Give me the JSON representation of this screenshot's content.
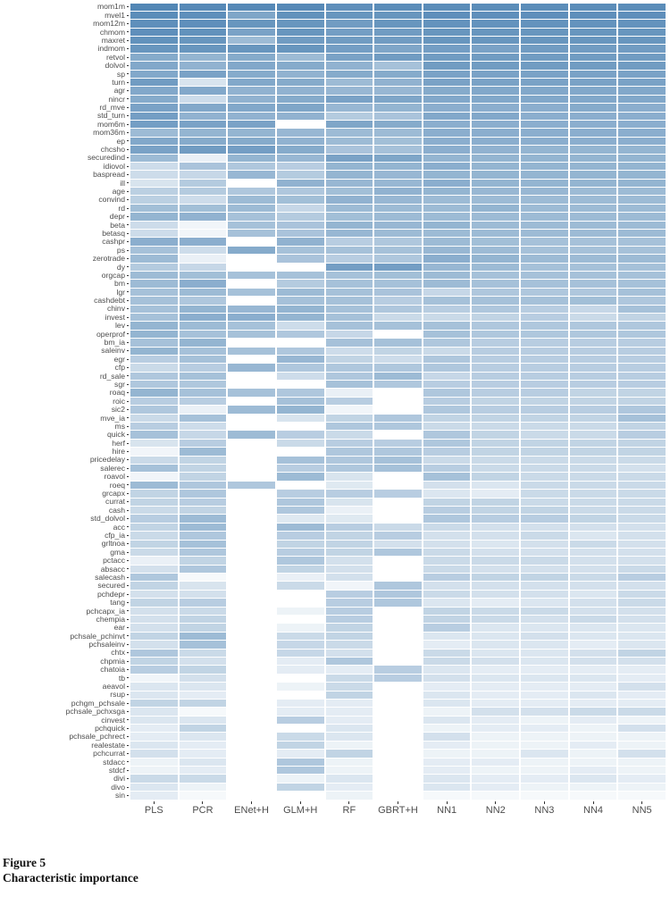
{
  "figure": {
    "number": "Figure 5",
    "title": "Characteristic importance"
  },
  "chart_data": {
    "type": "heatmap",
    "title": "",
    "xlabel": "",
    "ylabel": "",
    "legend": "none",
    "value_range": [
      0,
      1
    ],
    "color_low": "#ffffff",
    "color_high": "#4d83b3",
    "color_high_rgb": [
      77,
      131,
      179
    ],
    "columns": [
      "PLS",
      "PCR",
      "ENet+H",
      "GLM+H",
      "RF",
      "GBRT+H",
      "NN1",
      "NN2",
      "NN3",
      "NN4",
      "NN5"
    ],
    "rows": [
      "mom1m",
      "mvel1",
      "mom12m",
      "chmom",
      "maxret",
      "indmom",
      "retvol",
      "dolvol",
      "sp",
      "turn",
      "agr",
      "nincr",
      "rd_mve",
      "std_turn",
      "mom6m",
      "mom36m",
      "ep",
      "chcsho",
      "securedind",
      "idiovol",
      "baspread",
      "ill",
      "age",
      "convind",
      "rd",
      "depr",
      "beta",
      "betasq",
      "cashpr",
      "ps",
      "zerotrade",
      "dy",
      "orgcap",
      "bm",
      "lgr",
      "cashdebt",
      "chinv",
      "invest",
      "lev",
      "operprof",
      "bm_ia",
      "saleinv",
      "egr",
      "cfp",
      "rd_sale",
      "sgr",
      "roaq",
      "roic",
      "sic2",
      "mve_ia",
      "ms",
      "quick",
      "herf",
      "hire",
      "pricedelay",
      "salerec",
      "roavol",
      "roeq",
      "grcapx",
      "currat",
      "cash",
      "std_dolvol",
      "acc",
      "cfp_ia",
      "grltnoa",
      "gma",
      "pctacc",
      "absacc",
      "salecash",
      "secured",
      "pchdepr",
      "tang",
      "pchcapx_ia",
      "chempia",
      "ear",
      "pchsale_pchinvt",
      "pchsaleinv",
      "chtx",
      "chpmia",
      "chatoia",
      "tb",
      "aeavol",
      "rsup",
      "pchgm_pchsale",
      "pchsale_pchxsga",
      "cinvest",
      "pchquick",
      "pchsale_pchrect",
      "realestate",
      "pchcurrat",
      "stdacc",
      "stdcf",
      "divi",
      "divo",
      "sin"
    ],
    "values": [
      [
        0.97,
        0.95,
        0.95,
        0.95,
        0.9,
        0.92,
        0.92,
        0.92,
        0.92,
        0.92,
        0.92
      ],
      [
        0.92,
        0.9,
        0.72,
        0.88,
        0.85,
        0.85,
        0.9,
        0.9,
        0.9,
        0.9,
        0.9
      ],
      [
        0.9,
        0.9,
        0.85,
        0.85,
        0.8,
        0.85,
        0.87,
        0.87,
        0.87,
        0.87,
        0.87
      ],
      [
        0.9,
        0.88,
        0.75,
        0.85,
        0.78,
        0.8,
        0.85,
        0.85,
        0.85,
        0.85,
        0.85
      ],
      [
        0.88,
        0.85,
        0.55,
        0.8,
        0.8,
        0.8,
        0.85,
        0.85,
        0.85,
        0.85,
        0.85
      ],
      [
        0.85,
        0.85,
        0.85,
        0.85,
        0.78,
        0.72,
        0.78,
        0.75,
        0.8,
        0.8,
        0.8
      ],
      [
        0.68,
        0.6,
        0.68,
        0.55,
        0.75,
        0.8,
        0.8,
        0.8,
        0.8,
        0.8,
        0.8
      ],
      [
        0.7,
        0.62,
        0.7,
        0.68,
        0.62,
        0.5,
        0.8,
        0.8,
        0.8,
        0.8,
        0.8
      ],
      [
        0.7,
        0.75,
        0.68,
        0.62,
        0.68,
        0.68,
        0.75,
        0.75,
        0.75,
        0.75,
        0.75
      ],
      [
        0.8,
        0.22,
        0.7,
        0.68,
        0.55,
        0.62,
        0.75,
        0.75,
        0.75,
        0.75,
        0.75
      ],
      [
        0.7,
        0.7,
        0.62,
        0.62,
        0.58,
        0.58,
        0.68,
        0.7,
        0.7,
        0.7,
        0.7
      ],
      [
        0.68,
        0.28,
        0.62,
        0.68,
        0.75,
        0.72,
        0.7,
        0.7,
        0.7,
        0.7,
        0.7
      ],
      [
        0.75,
        0.7,
        0.7,
        0.72,
        0.58,
        0.6,
        0.65,
        0.65,
        0.65,
        0.68,
        0.65
      ],
      [
        0.78,
        0.62,
        0.62,
        0.62,
        0.42,
        0.48,
        0.7,
        0.7,
        0.65,
        0.65,
        0.65
      ],
      [
        0.78,
        0.75,
        0.75,
        0.0,
        0.72,
        0.68,
        0.65,
        0.65,
        0.65,
        0.65,
        0.65
      ],
      [
        0.55,
        0.6,
        0.6,
        0.58,
        0.55,
        0.55,
        0.65,
        0.65,
        0.65,
        0.65,
        0.65
      ],
      [
        0.7,
        0.68,
        0.68,
        0.62,
        0.55,
        0.52,
        0.65,
        0.65,
        0.65,
        0.65,
        0.65
      ],
      [
        0.75,
        0.8,
        0.78,
        0.68,
        0.48,
        0.5,
        0.65,
        0.62,
        0.6,
        0.6,
        0.6
      ],
      [
        0.55,
        0.12,
        0.6,
        0.58,
        0.75,
        0.72,
        0.6,
        0.6,
        0.6,
        0.6,
        0.6
      ],
      [
        0.28,
        0.48,
        0.45,
        0.4,
        0.6,
        0.6,
        0.65,
        0.6,
        0.6,
        0.6,
        0.6
      ],
      [
        0.28,
        0.32,
        0.58,
        0.42,
        0.6,
        0.58,
        0.6,
        0.6,
        0.6,
        0.6,
        0.6
      ],
      [
        0.22,
        0.42,
        0.0,
        0.62,
        0.58,
        0.58,
        0.65,
        0.6,
        0.6,
        0.6,
        0.6
      ],
      [
        0.38,
        0.42,
        0.45,
        0.45,
        0.52,
        0.62,
        0.6,
        0.58,
        0.58,
        0.55,
        0.55
      ],
      [
        0.38,
        0.28,
        0.55,
        0.52,
        0.62,
        0.58,
        0.55,
        0.55,
        0.55,
        0.55,
        0.55
      ],
      [
        0.52,
        0.52,
        0.55,
        0.32,
        0.55,
        0.55,
        0.55,
        0.6,
        0.55,
        0.55,
        0.55
      ],
      [
        0.6,
        0.62,
        0.5,
        0.42,
        0.52,
        0.55,
        0.55,
        0.55,
        0.55,
        0.55,
        0.55
      ],
      [
        0.28,
        0.08,
        0.5,
        0.48,
        0.6,
        0.58,
        0.6,
        0.55,
        0.55,
        0.55,
        0.55
      ],
      [
        0.28,
        0.08,
        0.5,
        0.48,
        0.58,
        0.55,
        0.55,
        0.55,
        0.55,
        0.55,
        0.55
      ],
      [
        0.65,
        0.65,
        0.0,
        0.62,
        0.4,
        0.45,
        0.55,
        0.52,
        0.5,
        0.5,
        0.5
      ],
      [
        0.5,
        0.28,
        0.68,
        0.5,
        0.5,
        0.5,
        0.58,
        0.55,
        0.5,
        0.5,
        0.5
      ],
      [
        0.55,
        0.12,
        0.0,
        0.48,
        0.4,
        0.45,
        0.65,
        0.6,
        0.55,
        0.55,
        0.55
      ],
      [
        0.42,
        0.32,
        0.0,
        0.0,
        0.78,
        0.78,
        0.58,
        0.55,
        0.5,
        0.5,
        0.5
      ],
      [
        0.55,
        0.52,
        0.5,
        0.5,
        0.5,
        0.52,
        0.55,
        0.5,
        0.5,
        0.5,
        0.5
      ],
      [
        0.55,
        0.65,
        0.0,
        0.42,
        0.5,
        0.5,
        0.55,
        0.5,
        0.5,
        0.5,
        0.5
      ],
      [
        0.5,
        0.55,
        0.5,
        0.55,
        0.5,
        0.48,
        0.32,
        0.45,
        0.45,
        0.45,
        0.5
      ],
      [
        0.5,
        0.45,
        0.0,
        0.5,
        0.5,
        0.4,
        0.5,
        0.5,
        0.5,
        0.52,
        0.45
      ],
      [
        0.5,
        0.6,
        0.58,
        0.6,
        0.5,
        0.45,
        0.4,
        0.45,
        0.4,
        0.32,
        0.5
      ],
      [
        0.5,
        0.65,
        0.65,
        0.6,
        0.5,
        0.3,
        0.3,
        0.35,
        0.4,
        0.3,
        0.35
      ],
      [
        0.6,
        0.55,
        0.5,
        0.28,
        0.5,
        0.5,
        0.5,
        0.45,
        0.45,
        0.45,
        0.45
      ],
      [
        0.6,
        0.5,
        0.5,
        0.45,
        0.32,
        0.0,
        0.5,
        0.45,
        0.45,
        0.45,
        0.45
      ],
      [
        0.5,
        0.6,
        0.0,
        0.0,
        0.5,
        0.5,
        0.45,
        0.4,
        0.4,
        0.4,
        0.4
      ],
      [
        0.6,
        0.5,
        0.5,
        0.45,
        0.28,
        0.35,
        0.3,
        0.4,
        0.4,
        0.4,
        0.4
      ],
      [
        0.4,
        0.5,
        0.0,
        0.58,
        0.35,
        0.28,
        0.45,
        0.4,
        0.4,
        0.4,
        0.4
      ],
      [
        0.3,
        0.4,
        0.58,
        0.45,
        0.45,
        0.45,
        0.45,
        0.4,
        0.4,
        0.4,
        0.4
      ],
      [
        0.45,
        0.5,
        0.0,
        0.28,
        0.45,
        0.55,
        0.32,
        0.4,
        0.4,
        0.4,
        0.4
      ],
      [
        0.45,
        0.45,
        0.0,
        0.0,
        0.5,
        0.45,
        0.4,
        0.4,
        0.4,
        0.4,
        0.4
      ],
      [
        0.6,
        0.5,
        0.5,
        0.45,
        0.12,
        0.0,
        0.45,
        0.4,
        0.4,
        0.35,
        0.35
      ],
      [
        0.4,
        0.4,
        0.0,
        0.5,
        0.4,
        0.0,
        0.4,
        0.35,
        0.35,
        0.35,
        0.35
      ],
      [
        0.45,
        0.12,
        0.55,
        0.6,
        0.08,
        0.0,
        0.45,
        0.4,
        0.4,
        0.4,
        0.45
      ],
      [
        0.3,
        0.5,
        0.0,
        0.22,
        0.35,
        0.45,
        0.35,
        0.35,
        0.35,
        0.35,
        0.5
      ],
      [
        0.4,
        0.28,
        0.0,
        0.0,
        0.45,
        0.45,
        0.3,
        0.3,
        0.3,
        0.3,
        0.35
      ],
      [
        0.5,
        0.32,
        0.55,
        0.4,
        0.3,
        0.0,
        0.45,
        0.35,
        0.3,
        0.3,
        0.4
      ],
      [
        0.22,
        0.4,
        0.0,
        0.3,
        0.4,
        0.4,
        0.45,
        0.35,
        0.35,
        0.35,
        0.35
      ],
      [
        0.08,
        0.55,
        0.0,
        0.0,
        0.45,
        0.45,
        0.4,
        0.35,
        0.35,
        0.35,
        0.35
      ],
      [
        0.3,
        0.35,
        0.0,
        0.5,
        0.45,
        0.5,
        0.3,
        0.3,
        0.3,
        0.3,
        0.3
      ],
      [
        0.5,
        0.35,
        0.0,
        0.4,
        0.45,
        0.5,
        0.4,
        0.3,
        0.3,
        0.3,
        0.25
      ],
      [
        0.08,
        0.35,
        0.0,
        0.55,
        0.22,
        0.0,
        0.5,
        0.35,
        0.3,
        0.3,
        0.3
      ],
      [
        0.55,
        0.45,
        0.45,
        0.0,
        0.18,
        0.0,
        0.25,
        0.2,
        0.3,
        0.3,
        0.3
      ],
      [
        0.35,
        0.45,
        0.0,
        0.4,
        0.4,
        0.4,
        0.2,
        0.15,
        0.3,
        0.3,
        0.3
      ],
      [
        0.35,
        0.4,
        0.0,
        0.45,
        0.22,
        0.0,
        0.35,
        0.35,
        0.3,
        0.3,
        0.3
      ],
      [
        0.3,
        0.35,
        0.0,
        0.45,
        0.12,
        0.0,
        0.4,
        0.35,
        0.35,
        0.3,
        0.3
      ],
      [
        0.4,
        0.55,
        0.0,
        0.18,
        0.18,
        0.0,
        0.45,
        0.4,
        0.4,
        0.35,
        0.3
      ],
      [
        0.35,
        0.55,
        0.0,
        0.55,
        0.4,
        0.3,
        0.3,
        0.25,
        0.25,
        0.25,
        0.25
      ],
      [
        0.3,
        0.45,
        0.0,
        0.4,
        0.35,
        0.4,
        0.25,
        0.25,
        0.3,
        0.2,
        0.25
      ],
      [
        0.35,
        0.5,
        0.0,
        0.35,
        0.35,
        0.25,
        0.25,
        0.2,
        0.25,
        0.3,
        0.25
      ],
      [
        0.3,
        0.45,
        0.0,
        0.4,
        0.35,
        0.45,
        0.3,
        0.25,
        0.25,
        0.25,
        0.25
      ],
      [
        0.12,
        0.35,
        0.0,
        0.45,
        0.25,
        0.0,
        0.3,
        0.3,
        0.3,
        0.25,
        0.25
      ],
      [
        0.25,
        0.45,
        0.0,
        0.35,
        0.25,
        0.0,
        0.3,
        0.25,
        0.25,
        0.25,
        0.3
      ],
      [
        0.45,
        0.05,
        0.0,
        0.12,
        0.25,
        0.0,
        0.4,
        0.35,
        0.35,
        0.3,
        0.4
      ],
      [
        0.35,
        0.22,
        0.0,
        0.3,
        0.08,
        0.45,
        0.25,
        0.25,
        0.25,
        0.25,
        0.25
      ],
      [
        0.25,
        0.25,
        0.0,
        0.0,
        0.4,
        0.45,
        0.3,
        0.25,
        0.25,
        0.2,
        0.3
      ],
      [
        0.35,
        0.4,
        0.0,
        0.0,
        0.4,
        0.45,
        0.2,
        0.15,
        0.2,
        0.25,
        0.3
      ],
      [
        0.25,
        0.3,
        0.0,
        0.1,
        0.4,
        0.0,
        0.35,
        0.3,
        0.3,
        0.25,
        0.25
      ],
      [
        0.25,
        0.35,
        0.0,
        0.0,
        0.4,
        0.0,
        0.35,
        0.3,
        0.25,
        0.3,
        0.25
      ],
      [
        0.25,
        0.35,
        0.0,
        0.1,
        0.35,
        0.0,
        0.4,
        0.2,
        0.2,
        0.2,
        0.2
      ],
      [
        0.35,
        0.55,
        0.0,
        0.3,
        0.35,
        0.0,
        0.2,
        0.2,
        0.25,
        0.2,
        0.2
      ],
      [
        0.25,
        0.5,
        0.0,
        0.32,
        0.3,
        0.0,
        0.15,
        0.2,
        0.2,
        0.15,
        0.2
      ],
      [
        0.45,
        0.3,
        0.0,
        0.32,
        0.25,
        0.0,
        0.3,
        0.2,
        0.2,
        0.25,
        0.35
      ],
      [
        0.35,
        0.25,
        0.0,
        0.15,
        0.45,
        0.0,
        0.3,
        0.25,
        0.2,
        0.25,
        0.25
      ],
      [
        0.4,
        0.35,
        0.0,
        0.15,
        0.15,
        0.4,
        0.2,
        0.15,
        0.15,
        0.15,
        0.15
      ],
      [
        0.08,
        0.25,
        0.0,
        0.0,
        0.3,
        0.4,
        0.25,
        0.2,
        0.2,
        0.2,
        0.15
      ],
      [
        0.2,
        0.2,
        0.0,
        0.1,
        0.3,
        0.0,
        0.15,
        0.15,
        0.15,
        0.15,
        0.25
      ],
      [
        0.2,
        0.15,
        0.0,
        0.0,
        0.35,
        0.0,
        0.2,
        0.15,
        0.15,
        0.2,
        0.15
      ],
      [
        0.35,
        0.35,
        0.0,
        0.15,
        0.15,
        0.0,
        0.2,
        0.15,
        0.15,
        0.15,
        0.15
      ],
      [
        0.2,
        0.05,
        0.0,
        0.15,
        0.15,
        0.0,
        0.1,
        0.25,
        0.25,
        0.3,
        0.3
      ],
      [
        0.2,
        0.2,
        0.0,
        0.4,
        0.15,
        0.0,
        0.2,
        0.15,
        0.1,
        0.15,
        0.1
      ],
      [
        0.15,
        0.35,
        0.0,
        0.0,
        0.2,
        0.0,
        0.1,
        0.15,
        0.15,
        0.1,
        0.25
      ],
      [
        0.15,
        0.2,
        0.0,
        0.3,
        0.2,
        0.0,
        0.25,
        0.1,
        0.1,
        0.1,
        0.1
      ],
      [
        0.2,
        0.15,
        0.0,
        0.35,
        0.1,
        0.0,
        0.15,
        0.1,
        0.1,
        0.15,
        0.1
      ],
      [
        0.25,
        0.15,
        0.0,
        0.15,
        0.35,
        0.0,
        0.1,
        0.1,
        0.2,
        0.1,
        0.25
      ],
      [
        0.1,
        0.2,
        0.0,
        0.45,
        0.1,
        0.0,
        0.15,
        0.15,
        0.1,
        0.1,
        0.1
      ],
      [
        0.1,
        0.15,
        0.0,
        0.45,
        0.1,
        0.0,
        0.15,
        0.1,
        0.1,
        0.15,
        0.1
      ],
      [
        0.3,
        0.3,
        0.0,
        0.1,
        0.2,
        0.0,
        0.2,
        0.15,
        0.15,
        0.2,
        0.15
      ],
      [
        0.2,
        0.1,
        0.0,
        0.35,
        0.15,
        0.0,
        0.2,
        0.15,
        0.1,
        0.1,
        0.1
      ],
      [
        0.15,
        0.05,
        0.0,
        0.0,
        0.1,
        0.0,
        0.05,
        0.05,
        0.05,
        0.05,
        0.05
      ]
    ]
  }
}
